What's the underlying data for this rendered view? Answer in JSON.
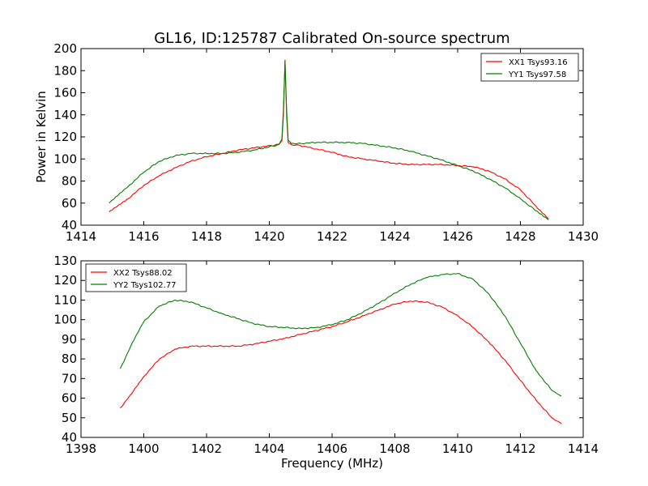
{
  "figure": {
    "title": "GL16, ID:125787 Calibrated On-source spectrum",
    "ylabel": "Power in Kelvin",
    "xlabel": "Frequency (MHz)"
  },
  "chart_data": [
    {
      "type": "line",
      "title": "GL16, ID:125787 Calibrated On-source spectrum",
      "ylabel": "Power in Kelvin",
      "xlabel": "",
      "xlim": [
        1414,
        1430
      ],
      "ylim": [
        40,
        200
      ],
      "xticks": [
        1414,
        1416,
        1418,
        1420,
        1422,
        1424,
        1426,
        1428,
        1430
      ],
      "yticks": [
        40,
        60,
        80,
        100,
        120,
        140,
        160,
        180,
        200
      ],
      "legend": "top-right",
      "grid": false,
      "series": [
        {
          "name": "XX1 Tsys93.16",
          "color": "#ff0000",
          "x": [
            1414.9,
            1415.5,
            1416.0,
            1416.5,
            1417.0,
            1417.5,
            1418.0,
            1418.5,
            1419.0,
            1419.5,
            1420.0,
            1420.3,
            1420.4,
            1420.45,
            1420.5,
            1420.55,
            1420.6,
            1420.7,
            1421.0,
            1421.5,
            1422.0,
            1422.5,
            1423.0,
            1423.5,
            1424.0,
            1424.5,
            1425.0,
            1425.5,
            1426.0,
            1426.5,
            1427.0,
            1427.5,
            1428.0,
            1428.5,
            1428.9
          ],
          "y": [
            52,
            64,
            76,
            85,
            92,
            98,
            102,
            105,
            108,
            110,
            112,
            113,
            116,
            140,
            190,
            140,
            115,
            113,
            112,
            109,
            106,
            102,
            100,
            98,
            96,
            95,
            95,
            95,
            94,
            93,
            89,
            82,
            72,
            57,
            46
          ]
        },
        {
          "name": "YY1 Tsys97.58",
          "color": "#008000",
          "x": [
            1414.9,
            1415.5,
            1416.0,
            1416.5,
            1417.0,
            1417.5,
            1418.0,
            1418.5,
            1419.0,
            1419.5,
            1420.0,
            1420.3,
            1420.4,
            1420.45,
            1420.5,
            1420.55,
            1420.6,
            1420.7,
            1421.0,
            1421.5,
            1422.0,
            1422.5,
            1423.0,
            1423.5,
            1424.0,
            1424.5,
            1425.0,
            1425.5,
            1426.0,
            1426.5,
            1427.0,
            1427.5,
            1428.0,
            1428.5,
            1428.9
          ],
          "y": [
            60,
            75,
            88,
            98,
            103,
            105,
            105,
            105,
            106,
            108,
            111,
            113,
            118,
            145,
            188,
            145,
            117,
            114,
            114,
            115,
            115,
            115,
            114,
            112,
            110,
            107,
            103,
            99,
            94,
            89,
            82,
            74,
            64,
            53,
            45
          ]
        }
      ]
    },
    {
      "type": "line",
      "title": "",
      "ylabel": "",
      "xlabel": "Frequency (MHz)",
      "xlim": [
        1398,
        1414
      ],
      "ylim": [
        40,
        130
      ],
      "xticks": [
        1398,
        1400,
        1402,
        1404,
        1406,
        1408,
        1410,
        1412,
        1414
      ],
      "yticks": [
        40,
        50,
        60,
        70,
        80,
        90,
        100,
        110,
        120,
        130
      ],
      "legend": "top-left",
      "grid": false,
      "series": [
        {
          "name": "XX2 Tsys88.02",
          "color": "#ff0000",
          "x": [
            1399.25,
            1399.6,
            1400.0,
            1400.5,
            1401.0,
            1401.5,
            1402.0,
            1402.5,
            1403.0,
            1403.5,
            1404.0,
            1404.5,
            1405.0,
            1405.5,
            1406.0,
            1406.5,
            1407.0,
            1407.5,
            1408.0,
            1408.5,
            1409.0,
            1409.5,
            1410.0,
            1410.5,
            1411.0,
            1411.5,
            1412.0,
            1412.5,
            1413.0,
            1413.3
          ],
          "y": [
            55,
            62,
            71,
            80,
            85,
            86.5,
            86.5,
            86.5,
            86.5,
            87.5,
            89,
            90.5,
            92.5,
            94.5,
            96.5,
            99,
            102,
            105,
            108,
            109.5,
            109,
            106.5,
            102,
            96,
            88.5,
            79.5,
            69,
            59,
            50,
            47
          ]
        },
        {
          "name": "YY2 Tsys102.77",
          "color": "#008000",
          "x": [
            1399.25,
            1399.6,
            1400.0,
            1400.5,
            1401.0,
            1401.5,
            1402.0,
            1402.5,
            1403.0,
            1403.5,
            1404.0,
            1404.5,
            1405.0,
            1405.5,
            1406.0,
            1406.5,
            1407.0,
            1407.5,
            1408.0,
            1408.5,
            1409.0,
            1409.5,
            1410.0,
            1410.5,
            1411.0,
            1411.5,
            1412.0,
            1412.5,
            1413.0,
            1413.3
          ],
          "y": [
            75,
            87,
            99,
            107,
            110,
            109,
            106,
            103,
            100.5,
            98,
            96.5,
            96,
            95.5,
            96,
            97.5,
            100,
            104,
            108.5,
            113.5,
            118,
            121.5,
            123,
            123.5,
            120.5,
            113,
            102,
            88,
            74,
            64,
            61
          ]
        }
      ]
    }
  ]
}
